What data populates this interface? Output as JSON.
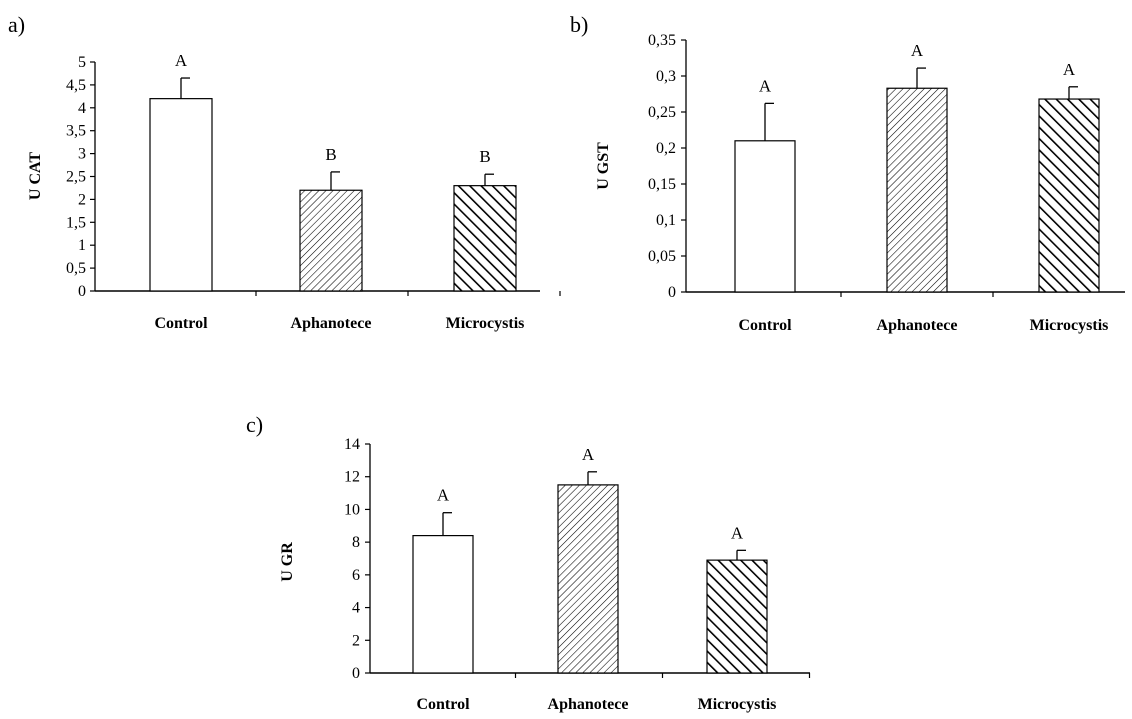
{
  "chart_data": [
    {
      "type": "bar",
      "panel_label": "a)",
      "ylabel": "U CAT",
      "xlabel": "",
      "ylim": [
        0,
        5
      ],
      "yticks": [
        "0",
        "0,5",
        "1",
        "1,5",
        "2",
        "2,5",
        "3",
        "3,5",
        "4",
        "4,5",
        "5"
      ],
      "yticks_values": [
        0,
        0.5,
        1,
        1.5,
        2,
        2.5,
        3,
        3.5,
        4,
        4.5,
        5
      ],
      "categories": [
        "Control",
        "Aphanotece",
        "Microcystis"
      ],
      "values": [
        4.2,
        2.2,
        2.3
      ],
      "errors": [
        0.45,
        0.4,
        0.25
      ],
      "fills": [
        "none",
        "dense-hatch",
        "bold-hatch"
      ],
      "significance": [
        "A",
        "B",
        "B"
      ]
    },
    {
      "type": "bar",
      "panel_label": "b)",
      "ylabel": "U GST",
      "xlabel": "",
      "ylim": [
        0,
        0.35
      ],
      "yticks": [
        "0",
        "0,05",
        "0,1",
        "0,15",
        "0,2",
        "0,25",
        "0,3",
        "0,35"
      ],
      "yticks_values": [
        0,
        0.05,
        0.1,
        0.15,
        0.2,
        0.25,
        0.3,
        0.35
      ],
      "categories": [
        "Control",
        "Aphanotece",
        "Microcystis"
      ],
      "values": [
        0.21,
        0.283,
        0.268
      ],
      "errors": [
        0.052,
        0.028,
        0.017
      ],
      "fills": [
        "none",
        "dense-hatch",
        "bold-hatch"
      ],
      "significance": [
        "A",
        "A",
        "A"
      ]
    },
    {
      "type": "bar",
      "panel_label": "c)",
      "ylabel": "U GR",
      "xlabel": "",
      "ylim": [
        0,
        14
      ],
      "yticks": [
        "0",
        "2",
        "4",
        "6",
        "8",
        "10",
        "12",
        "14"
      ],
      "yticks_values": [
        0,
        2,
        4,
        6,
        8,
        10,
        12,
        14
      ],
      "categories": [
        "Control",
        "Aphanotece",
        "Microcystis"
      ],
      "values": [
        8.4,
        11.5,
        6.9
      ],
      "errors": [
        1.4,
        0.8,
        0.6
      ],
      "fills": [
        "none",
        "dense-hatch",
        "bold-hatch"
      ],
      "significance": [
        "A",
        "A",
        "A"
      ]
    }
  ]
}
